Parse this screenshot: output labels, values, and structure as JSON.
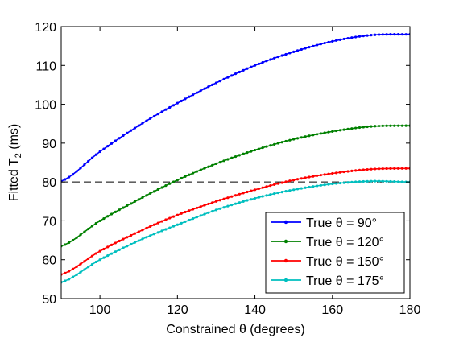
{
  "chart_data": {
    "type": "line",
    "xlabel": "Constrained θ (degrees)",
    "ylabel_main": "Fitted T",
    "ylabel_sub": "2",
    "ylabel_unit": " (ms)",
    "xlim": [
      90,
      180
    ],
    "ylim": [
      50,
      120
    ],
    "xticks": [
      100,
      120,
      140,
      160,
      180
    ],
    "yticks": [
      50,
      60,
      70,
      80,
      90,
      100,
      110,
      120
    ],
    "grid": false,
    "legend_position": "bottom-right",
    "reference_line": {
      "y": 80,
      "style": "dashed",
      "color": "#000000"
    },
    "x": [
      90,
      100,
      110,
      120,
      130,
      140,
      150,
      160,
      170,
      180
    ],
    "series": [
      {
        "name": "True θ = 90°",
        "color": "#0000ff",
        "values": [
          80.2,
          87.8,
          94.5,
          100.3,
          105.5,
          110.0,
          113.5,
          116.2,
          117.8,
          118.0
        ]
      },
      {
        "name": "True θ = 120°",
        "color": "#008000",
        "values": [
          63.5,
          70.0,
          75.5,
          80.5,
          84.7,
          88.2,
          91.0,
          93.0,
          94.3,
          94.5
        ]
      },
      {
        "name": "True θ = 150°",
        "color": "#ff0000",
        "values": [
          56.2,
          62.2,
          67.2,
          71.5,
          75.0,
          78.0,
          80.5,
          82.2,
          83.3,
          83.5
        ]
      },
      {
        "name": "True θ = 175°",
        "color": "#00bfbf",
        "values": [
          54.2,
          60.0,
          64.9,
          69.0,
          72.8,
          75.8,
          78.0,
          79.5,
          80.2,
          80.0
        ]
      }
    ]
  }
}
